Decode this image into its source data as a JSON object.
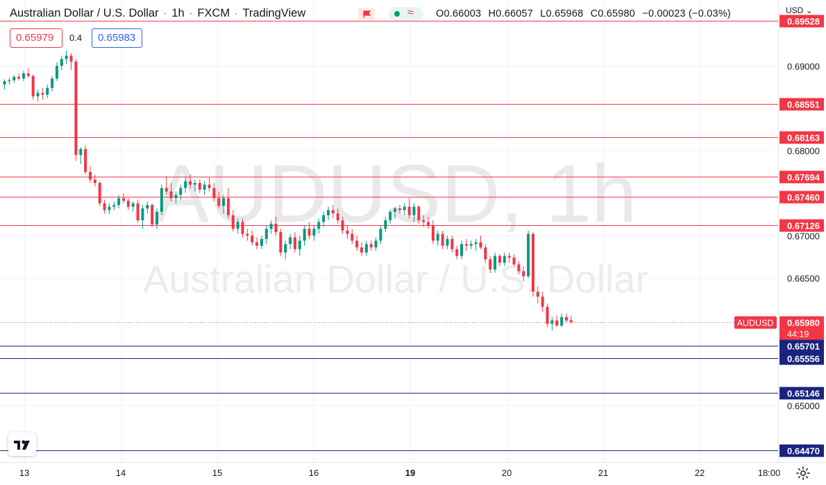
{
  "header": {
    "title": "Australian Dollar / U.S. Dollar",
    "interval": "1h",
    "exchange": "FXCM",
    "source": "TradingView",
    "separator": "·",
    "ohlc": {
      "o": "O0.66003",
      "h": "H0.66057",
      "l": "L0.65968",
      "c": "C0.65980",
      "change": "−0.00023 (−0.03%)"
    }
  },
  "quote": {
    "bid": "0.65979",
    "spread": "0.4",
    "ask": "0.65983"
  },
  "axis_currency": "USD",
  "icons": {
    "flag": "flag-icon",
    "pill": "indicator-toggle-icon",
    "logo": "tradingview-logo-icon",
    "settings": "gear-icon",
    "dropdown": "chevron-down-icon"
  },
  "colors": {
    "up": "#089981",
    "down": "#f23645",
    "resistance": "#f23645",
    "support": "#1a237e",
    "price": "#f23645",
    "watermark": "#e6e6e6"
  },
  "chart_data": {
    "type": "candlestick",
    "symbol": "AUDUSD",
    "watermark_symbol": "AUDUSD, 1h",
    "watermark_name": "Australian Dollar / U.S. Dollar",
    "ylim": [
      0.6432,
      0.6955
    ],
    "y_ticks": [
      "0.69000",
      "0.68000",
      "0.67000",
      "0.66500",
      "0.65000"
    ],
    "x_ticks": [
      "13",
      "14",
      "15",
      "16",
      "19",
      "20",
      "21",
      "22",
      "18:00"
    ],
    "x_tick_bold": "19",
    "resistance_levels": [
      "0.69528",
      "0.68551",
      "0.68163",
      "0.67694",
      "0.67460",
      "0.67126"
    ],
    "support_levels": [
      "0.65701",
      "0.65556",
      "0.65146",
      "0.64470"
    ],
    "last_price": {
      "symbol_label": "AUDUSD",
      "value": "0.65980",
      "countdown": "44:19"
    },
    "candles": [
      [
        0.6878,
        0.6884,
        0.6872,
        0.6882
      ],
      [
        0.6882,
        0.6886,
        0.6878,
        0.6883
      ],
      [
        0.6883,
        0.6889,
        0.688,
        0.6887
      ],
      [
        0.6887,
        0.6891,
        0.6883,
        0.6885
      ],
      [
        0.6885,
        0.6894,
        0.6882,
        0.6891
      ],
      [
        0.6891,
        0.6897,
        0.6886,
        0.6888
      ],
      [
        0.6888,
        0.689,
        0.686,
        0.6864
      ],
      [
        0.6864,
        0.6872,
        0.6858,
        0.6868
      ],
      [
        0.6868,
        0.6874,
        0.686,
        0.6866
      ],
      [
        0.6866,
        0.6878,
        0.6862,
        0.6874
      ],
      [
        0.6874,
        0.6888,
        0.687,
        0.6885
      ],
      [
        0.6885,
        0.6904,
        0.6882,
        0.69
      ],
      [
        0.69,
        0.6912,
        0.6895,
        0.6908
      ],
      [
        0.6908,
        0.6918,
        0.6902,
        0.6912
      ],
      [
        0.6912,
        0.6915,
        0.6895,
        0.6905
      ],
      [
        0.6905,
        0.6908,
        0.6788,
        0.6795
      ],
      [
        0.6795,
        0.6804,
        0.6784,
        0.6802
      ],
      [
        0.6802,
        0.6806,
        0.6772,
        0.6775
      ],
      [
        0.6775,
        0.6782,
        0.6762,
        0.6766
      ],
      [
        0.6766,
        0.6772,
        0.6758,
        0.6762
      ],
      [
        0.6762,
        0.6764,
        0.6735,
        0.6738
      ],
      [
        0.6738,
        0.6742,
        0.6726,
        0.673
      ],
      [
        0.673,
        0.6738,
        0.6725,
        0.6734
      ],
      [
        0.6734,
        0.674,
        0.673,
        0.6736
      ],
      [
        0.6736,
        0.6748,
        0.6732,
        0.6744
      ],
      [
        0.6744,
        0.675,
        0.6738,
        0.6741
      ],
      [
        0.6741,
        0.6744,
        0.673,
        0.6734
      ],
      [
        0.6734,
        0.674,
        0.6728,
        0.6738
      ],
      [
        0.6738,
        0.6742,
        0.6715,
        0.6718
      ],
      [
        0.6718,
        0.6736,
        0.6708,
        0.6732
      ],
      [
        0.6732,
        0.674,
        0.6726,
        0.6736
      ],
      [
        0.6736,
        0.6738,
        0.671,
        0.6713
      ],
      [
        0.6713,
        0.6732,
        0.6708,
        0.6728
      ],
      [
        0.6728,
        0.676,
        0.6724,
        0.6756
      ],
      [
        0.6756,
        0.677,
        0.6748,
        0.6752
      ],
      [
        0.6752,
        0.6762,
        0.674,
        0.6744
      ],
      [
        0.6744,
        0.6752,
        0.6738,
        0.6748
      ],
      [
        0.6748,
        0.676,
        0.6742,
        0.6756
      ],
      [
        0.6756,
        0.6768,
        0.675,
        0.6764
      ],
      [
        0.6764,
        0.6772,
        0.6755,
        0.676
      ],
      [
        0.676,
        0.6766,
        0.6752,
        0.6762
      ],
      [
        0.6762,
        0.6766,
        0.675,
        0.6754
      ],
      [
        0.6754,
        0.6764,
        0.6748,
        0.676
      ],
      [
        0.676,
        0.6768,
        0.6752,
        0.6756
      ],
      [
        0.6756,
        0.6762,
        0.674,
        0.6744
      ],
      [
        0.6744,
        0.6752,
        0.6732,
        0.6735
      ],
      [
        0.6735,
        0.6748,
        0.6726,
        0.6744
      ],
      [
        0.6744,
        0.6756,
        0.672,
        0.6724
      ],
      [
        0.6724,
        0.673,
        0.6705,
        0.6708
      ],
      [
        0.6708,
        0.672,
        0.6702,
        0.6716
      ],
      [
        0.6716,
        0.672,
        0.6698,
        0.6702
      ],
      [
        0.6702,
        0.6708,
        0.6694,
        0.67
      ],
      [
        0.67,
        0.6706,
        0.6688,
        0.6692
      ],
      [
        0.6692,
        0.6698,
        0.6684,
        0.6688
      ],
      [
        0.6688,
        0.67,
        0.6684,
        0.6696
      ],
      [
        0.6696,
        0.6712,
        0.669,
        0.6708
      ],
      [
        0.6708,
        0.6718,
        0.6702,
        0.6714
      ],
      [
        0.6714,
        0.6722,
        0.67,
        0.6704
      ],
      [
        0.6704,
        0.6708,
        0.6676,
        0.668
      ],
      [
        0.668,
        0.6694,
        0.6672,
        0.669
      ],
      [
        0.669,
        0.6702,
        0.6684,
        0.6698
      ],
      [
        0.6698,
        0.6704,
        0.668,
        0.6684
      ],
      [
        0.6684,
        0.67,
        0.6676,
        0.6694
      ],
      [
        0.6694,
        0.6712,
        0.6688,
        0.6708
      ],
      [
        0.6708,
        0.6716,
        0.6696,
        0.67
      ],
      [
        0.67,
        0.6712,
        0.6694,
        0.6708
      ],
      [
        0.6708,
        0.672,
        0.6702,
        0.6716
      ],
      [
        0.6716,
        0.6728,
        0.671,
        0.6724
      ],
      [
        0.6724,
        0.6734,
        0.6718,
        0.673
      ],
      [
        0.673,
        0.6736,
        0.672,
        0.6726
      ],
      [
        0.6726,
        0.6732,
        0.6714,
        0.6718
      ],
      [
        0.6718,
        0.6722,
        0.6702,
        0.6706
      ],
      [
        0.6706,
        0.6712,
        0.6696,
        0.6702
      ],
      [
        0.6702,
        0.6708,
        0.669,
        0.6694
      ],
      [
        0.6694,
        0.67,
        0.6682,
        0.6686
      ],
      [
        0.6686,
        0.6692,
        0.6676,
        0.668
      ],
      [
        0.668,
        0.6694,
        0.6676,
        0.669
      ],
      [
        0.669,
        0.6694,
        0.6682,
        0.6686
      ],
      [
        0.6686,
        0.6698,
        0.6682,
        0.6694
      ],
      [
        0.6694,
        0.6712,
        0.669,
        0.6708
      ],
      [
        0.6708,
        0.6722,
        0.6704,
        0.6718
      ],
      [
        0.6718,
        0.673,
        0.6714,
        0.6728
      ],
      [
        0.6728,
        0.6734,
        0.672,
        0.6732
      ],
      [
        0.6732,
        0.6736,
        0.6726,
        0.673
      ],
      [
        0.673,
        0.6738,
        0.6724,
        0.6734
      ],
      [
        0.6734,
        0.6744,
        0.672,
        0.6724
      ],
      [
        0.6724,
        0.6738,
        0.6716,
        0.6734
      ],
      [
        0.6734,
        0.6736,
        0.6714,
        0.6718
      ],
      [
        0.6718,
        0.6724,
        0.671,
        0.6716
      ],
      [
        0.6716,
        0.6722,
        0.6708,
        0.6712
      ],
      [
        0.6712,
        0.6718,
        0.669,
        0.6694
      ],
      [
        0.6694,
        0.6706,
        0.6688,
        0.6702
      ],
      [
        0.6702,
        0.6706,
        0.6684,
        0.6688
      ],
      [
        0.6688,
        0.67,
        0.6684,
        0.6696
      ],
      [
        0.6696,
        0.67,
        0.668,
        0.6684
      ],
      [
        0.6684,
        0.6688,
        0.6672,
        0.6676
      ],
      [
        0.6676,
        0.6694,
        0.6672,
        0.669
      ],
      [
        0.669,
        0.6696,
        0.6682,
        0.6688
      ],
      [
        0.6688,
        0.6694,
        0.6684,
        0.669
      ],
      [
        0.669,
        0.6696,
        0.6682,
        0.6692
      ],
      [
        0.6692,
        0.67,
        0.6684,
        0.6686
      ],
      [
        0.6686,
        0.669,
        0.6668,
        0.6672
      ],
      [
        0.6672,
        0.6676,
        0.6656,
        0.666
      ],
      [
        0.666,
        0.668,
        0.6656,
        0.6676
      ],
      [
        0.6676,
        0.6678,
        0.6664,
        0.6668
      ],
      [
        0.6668,
        0.668,
        0.6664,
        0.6676
      ],
      [
        0.6676,
        0.668,
        0.6668,
        0.6674
      ],
      [
        0.6674,
        0.6678,
        0.6664,
        0.6666
      ],
      [
        0.6666,
        0.667,
        0.6654,
        0.6658
      ],
      [
        0.6658,
        0.6664,
        0.6646,
        0.6652
      ],
      [
        0.6652,
        0.6706,
        0.665,
        0.6702
      ],
      [
        0.6702,
        0.6704,
        0.6628,
        0.6634
      ],
      [
        0.6634,
        0.664,
        0.662,
        0.6628
      ],
      [
        0.6628,
        0.6634,
        0.661,
        0.6616
      ],
      [
        0.6616,
        0.662,
        0.6592,
        0.6596
      ],
      [
        0.6596,
        0.6604,
        0.6588,
        0.66
      ],
      [
        0.66,
        0.6606,
        0.6592,
        0.6594
      ],
      [
        0.6594,
        0.6608,
        0.6592,
        0.6604
      ],
      [
        0.6604,
        0.6608,
        0.6598,
        0.66
      ],
      [
        0.66003,
        0.66057,
        0.65968,
        0.6598
      ]
    ]
  }
}
